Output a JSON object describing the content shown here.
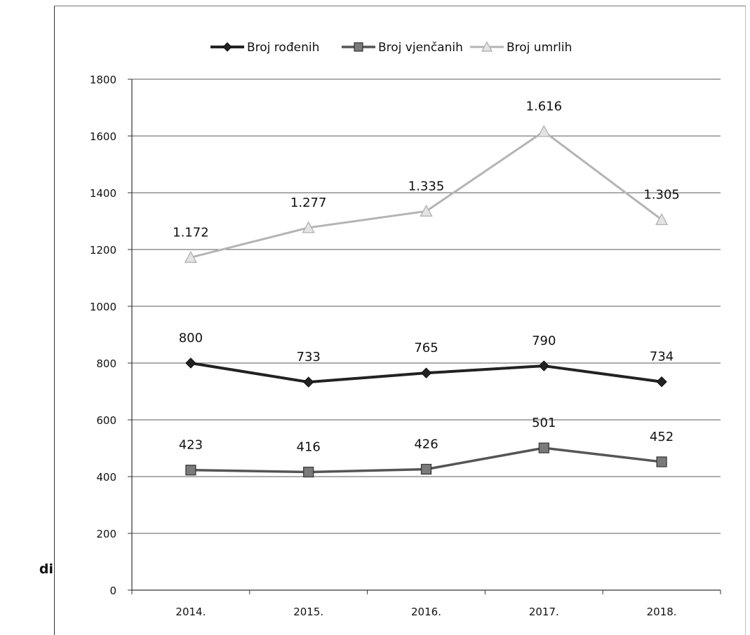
{
  "side_label": "dini",
  "chart_data": {
    "type": "line",
    "categories": [
      "2014.",
      "2015.",
      "2016.",
      "2017.",
      "2018."
    ],
    "ylim": [
      0,
      1800
    ],
    "yticks": [
      0,
      200,
      400,
      600,
      800,
      1000,
      1200,
      1400,
      1600,
      1800
    ],
    "grid": true,
    "legend_position": "top",
    "series": [
      {
        "name": "Broj rođenih",
        "values": [
          800,
          733,
          765,
          790,
          734
        ],
        "labels": [
          "800",
          "733",
          "765",
          "790",
          "734"
        ],
        "color": "#222222",
        "marker": "diamond"
      },
      {
        "name": "Broj vjenčanih",
        "values": [
          423,
          416,
          426,
          501,
          452
        ],
        "labels": [
          "423",
          "416",
          "426",
          "501",
          "452"
        ],
        "color": "#555555",
        "marker": "square"
      },
      {
        "name": "Broj umrlih",
        "values": [
          1172,
          1277,
          1335,
          1616,
          1305
        ],
        "labels": [
          "1.172",
          "1.277",
          "1.335",
          "1.616",
          "1.305"
        ],
        "color": "#b4b4b4",
        "marker": "triangle"
      }
    ]
  }
}
